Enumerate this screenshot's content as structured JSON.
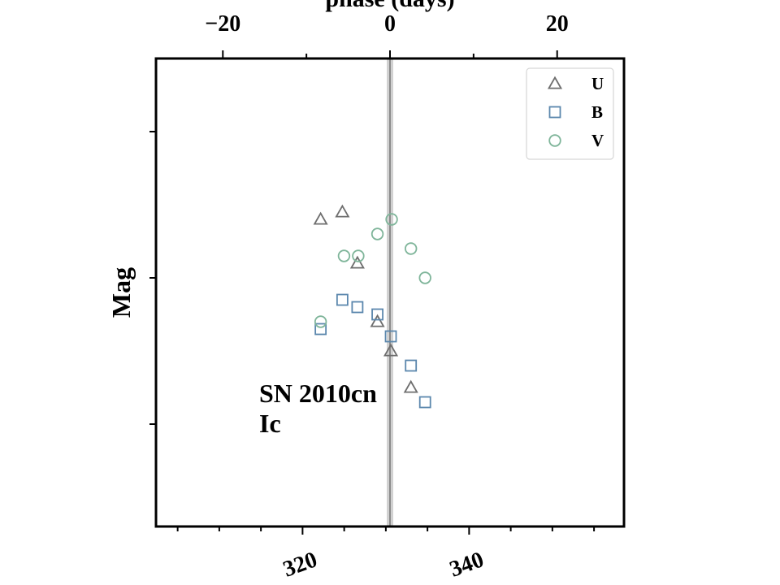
{
  "chart_data": {
    "type": "scatter",
    "title": "",
    "top_axis": {
      "label": "phase (days)",
      "ticks": [
        -20,
        0,
        20
      ],
      "tick_labels": [
        "−20",
        "0",
        "20"
      ],
      "range": [
        -28,
        28
      ]
    },
    "bottom_axis": {
      "label": "",
      "ticks": [
        320,
        340
      ],
      "tick_labels": [
        "320",
        "340"
      ],
      "range": [
        302.4,
        358.6
      ]
    },
    "ylabel": "Mag",
    "ylim": [
      0,
      6.4
    ],
    "y_inverted": true,
    "y_tick_labels": [],
    "peak_phase": 0,
    "annotation": {
      "name": "SN 2010cn",
      "type": "Ic"
    },
    "legend": {
      "position": "top-right"
    },
    "series": [
      {
        "name": "U",
        "marker": "triangle",
        "color": "#6e6e6e",
        "points": [
          [
            -8.3,
            2.2
          ],
          [
            -5.7,
            2.1
          ],
          [
            -3.9,
            2.8
          ],
          [
            -1.5,
            3.6
          ],
          [
            0.1,
            4.0
          ],
          [
            2.5,
            4.5
          ]
        ]
      },
      {
        "name": "B",
        "marker": "square",
        "color": "#5b87ad",
        "points": [
          [
            -8.3,
            3.7
          ],
          [
            -5.7,
            3.3
          ],
          [
            -3.9,
            3.4
          ],
          [
            -1.5,
            3.5
          ],
          [
            0.1,
            3.8
          ],
          [
            2.5,
            4.2
          ],
          [
            4.2,
            4.7
          ]
        ]
      },
      {
        "name": "V",
        "marker": "circle",
        "color": "#7fb59a",
        "points": [
          [
            -8.3,
            3.6
          ],
          [
            -5.5,
            2.7
          ],
          [
            -3.8,
            2.7
          ],
          [
            -1.5,
            2.4
          ],
          [
            0.2,
            2.2
          ],
          [
            2.5,
            2.6
          ],
          [
            4.2,
            3.0
          ]
        ]
      }
    ]
  }
}
